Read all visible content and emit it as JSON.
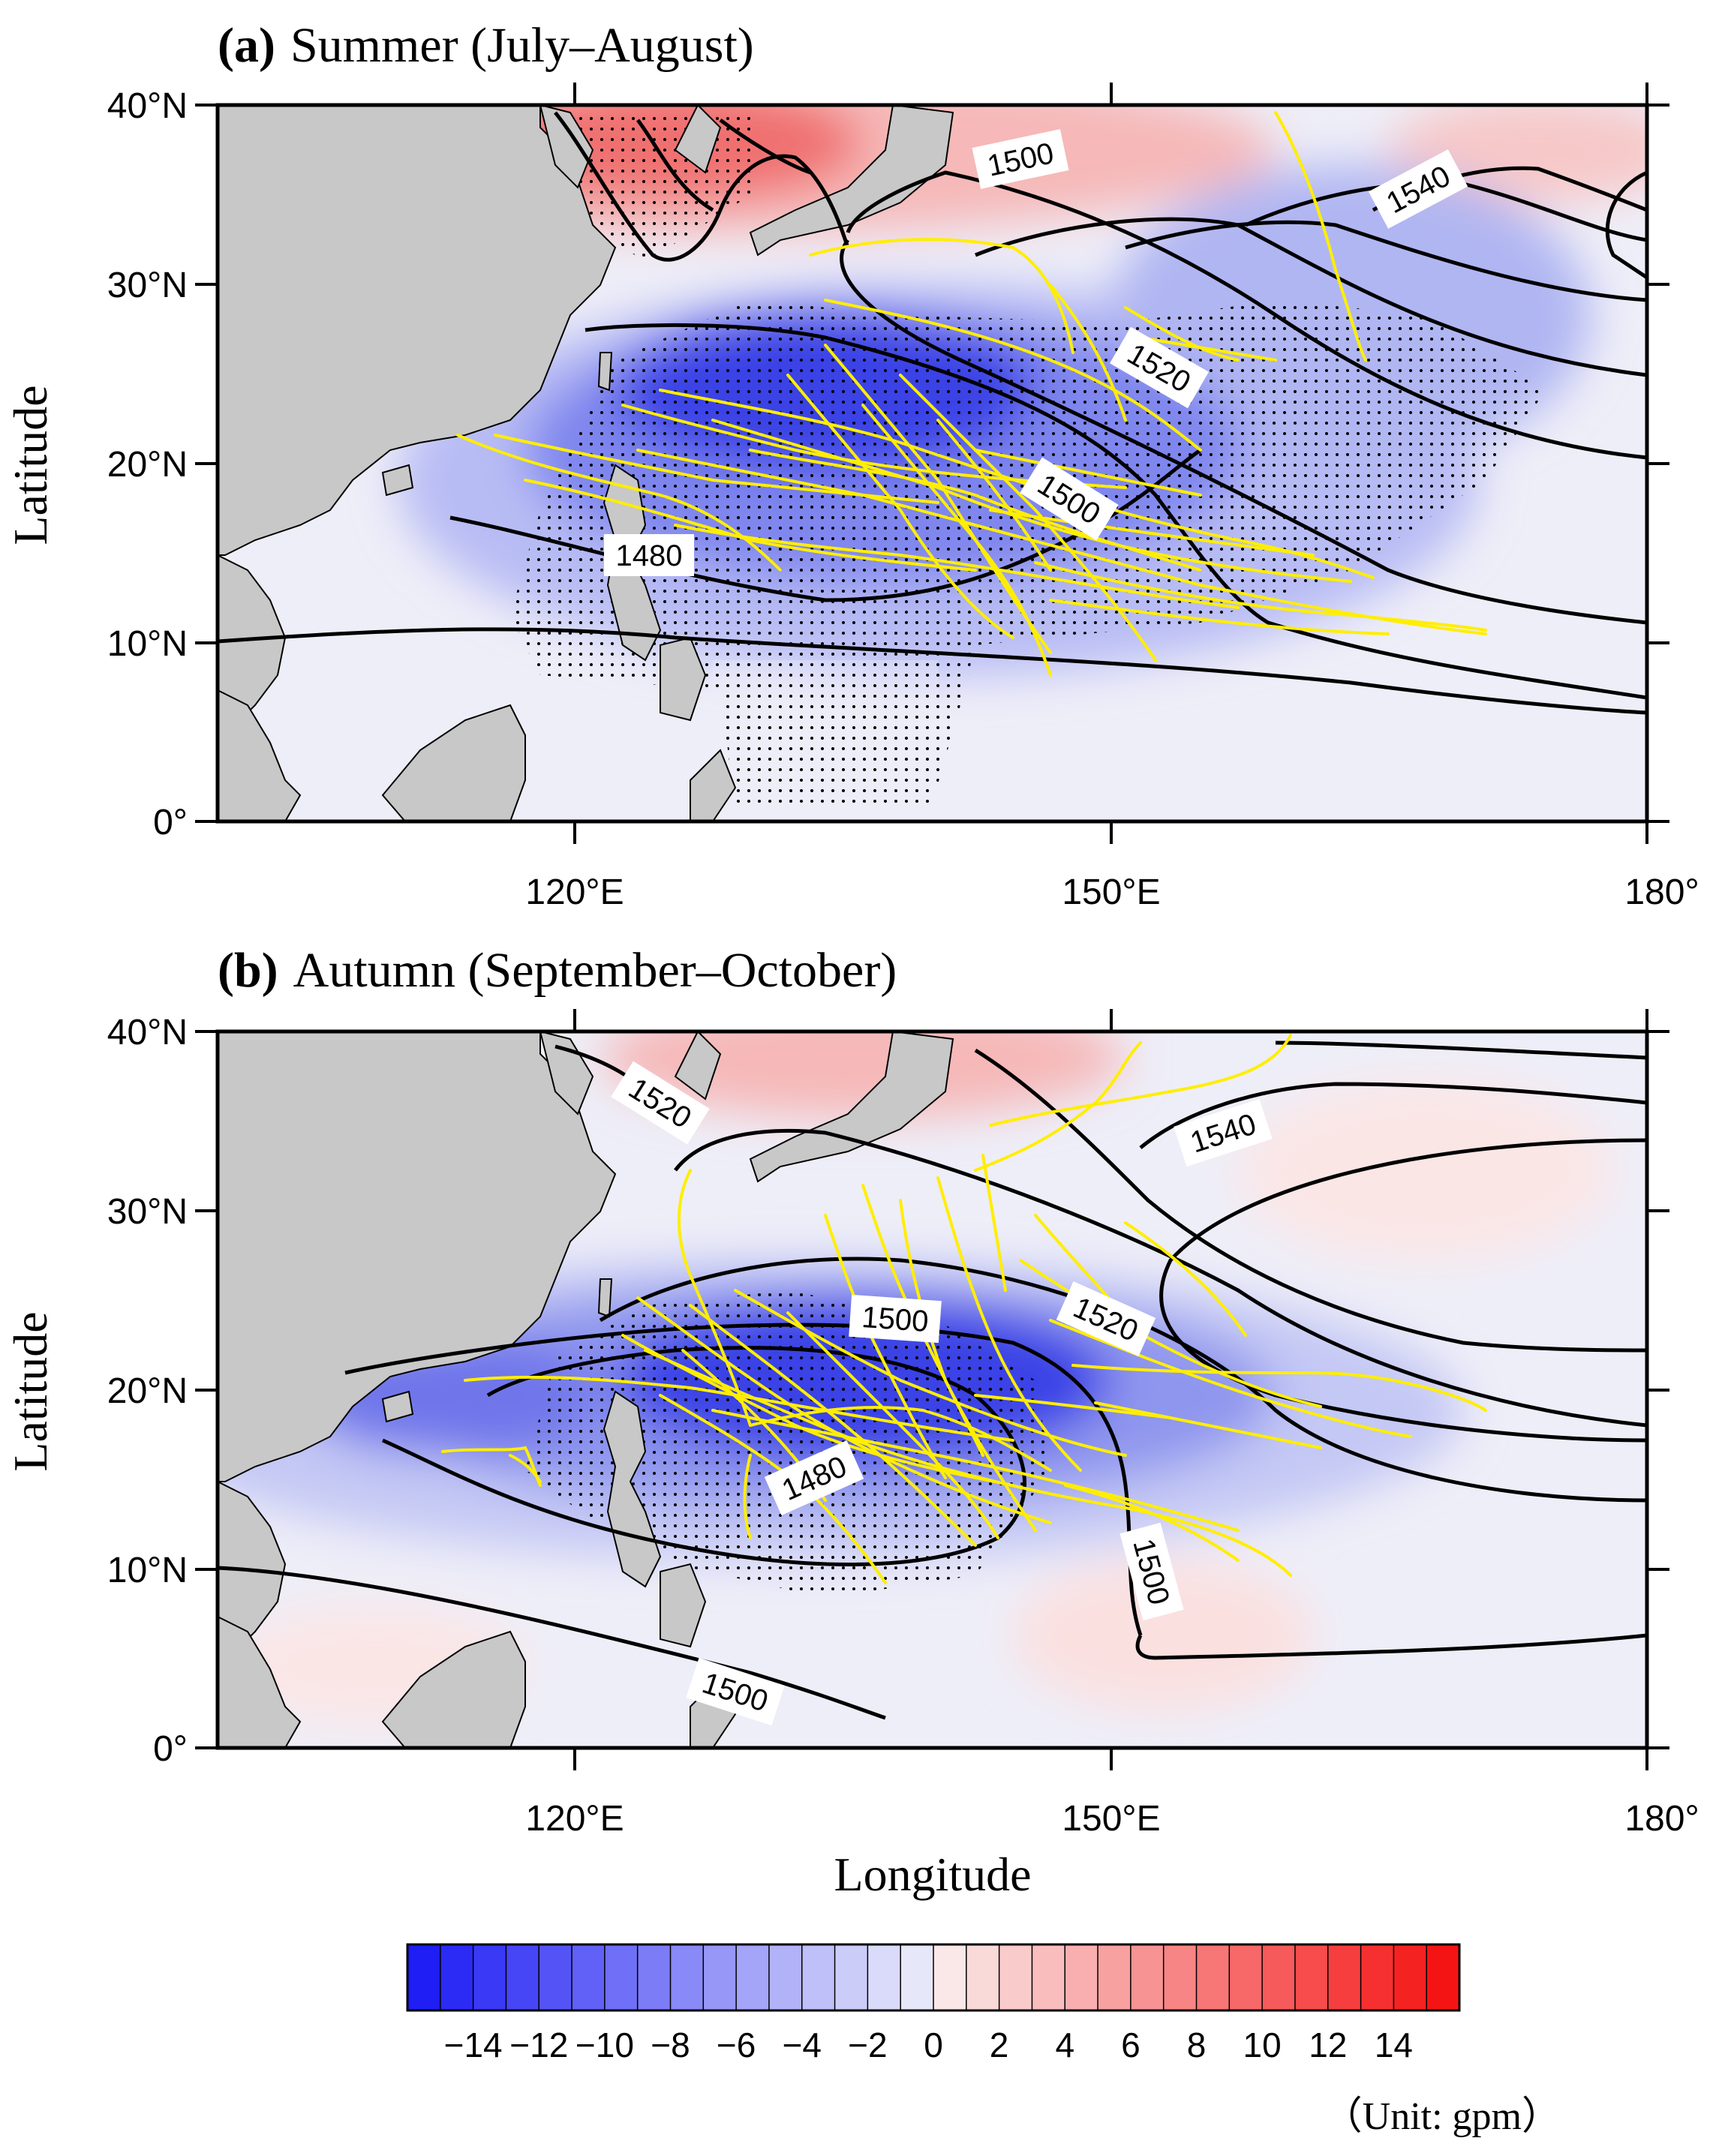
{
  "colors": {
    "land": "#c8c8c8",
    "track": "#ffee00",
    "contour": "#000000",
    "ocean_base": "#eeeef8"
  },
  "panels": [
    {
      "label": "(a)",
      "title": "Summer (July–August)",
      "contour_labels": [
        "1500",
        "1540",
        "1520",
        "1500",
        "1480"
      ]
    },
    {
      "label": "(b)",
      "title": "Autumn (September–October)",
      "contour_labels": [
        "1520",
        "1540",
        "1500",
        "1520",
        "1480",
        "1500",
        "1500"
      ]
    }
  ],
  "axes": {
    "ylabel": "Latitude",
    "xlabel": "Longitude",
    "lat_ticks": [
      "40°N",
      "30°N",
      "20°N",
      "10°N",
      "0°"
    ],
    "lon_ticks": [
      "120°E",
      "150°E",
      "180°"
    ]
  },
  "colorbar": {
    "tick_labels": [
      "−14",
      "−12",
      "−10",
      "−8",
      "−6",
      "−4",
      "−2",
      "0",
      "2",
      "4",
      "6",
      "8",
      "10",
      "12",
      "14"
    ],
    "unit": "（Unit: gpm）"
  }
}
